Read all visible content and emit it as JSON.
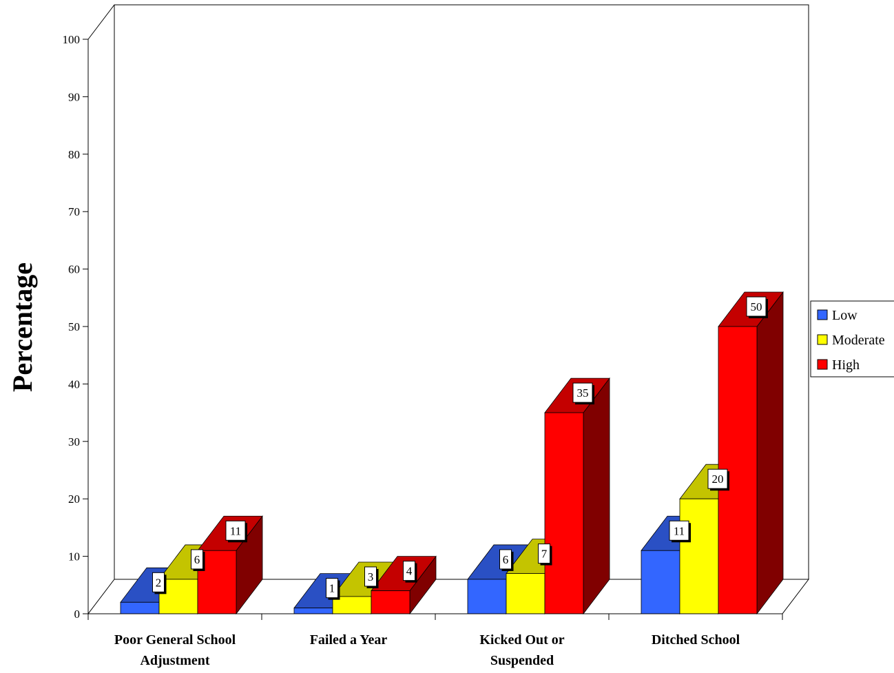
{
  "chart_data": {
    "type": "bar",
    "title": "",
    "xlabel": "",
    "ylabel": "Percentage",
    "ylim": [
      0,
      100
    ],
    "yticks": [
      0,
      10,
      20,
      30,
      40,
      50,
      60,
      70,
      80,
      90,
      100
    ],
    "categories": [
      [
        "Poor General School",
        "Adjustment"
      ],
      [
        "Failed a Year"
      ],
      [
        "Kicked Out or",
        "Suspended"
      ],
      [
        "Ditched School"
      ]
    ],
    "series": [
      {
        "name": "Low",
        "values": [
          2,
          1,
          6,
          11
        ],
        "colors": {
          "front": "#3366ff",
          "top": "#2a50c4",
          "side": "#1f3c99"
        }
      },
      {
        "name": "Moderate",
        "values": [
          6,
          3,
          7,
          20
        ],
        "colors": {
          "front": "#ffff00",
          "top": "#c4c400",
          "side": "#999900"
        }
      },
      {
        "name": "High",
        "values": [
          11,
          4,
          35,
          50
        ],
        "colors": {
          "front": "#ff0000",
          "top": "#c40000",
          "side": "#800000"
        }
      }
    ],
    "legend_position": "right",
    "grid": false,
    "style": "3d"
  }
}
